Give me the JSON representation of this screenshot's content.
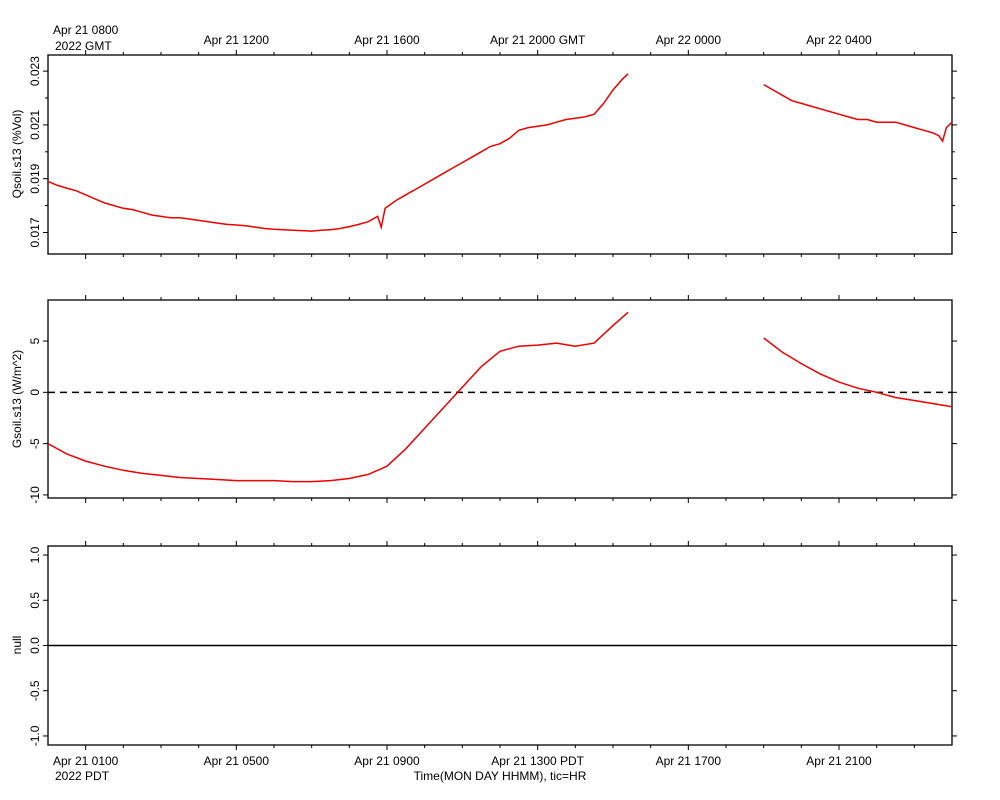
{
  "chart_data": {
    "type": "line",
    "top_axis": {
      "tick_labels": [
        "Apr 21 0800",
        "Apr 21 1200",
        "Apr 21 1600",
        "Apr 21 2000 GMT",
        "Apr 22 0000",
        "Apr 22 0400"
      ],
      "year_label": "2022 GMT"
    },
    "bottom_axis": {
      "tick_labels": [
        "Apr 21 0100",
        "Apr 21 0500",
        "Apr 21 0900",
        "Apr 21 1300 PDT",
        "Apr 21 1700",
        "Apr 21 2100"
      ],
      "year_label": "2022 PDT",
      "xlabel": "Time(MON DAY HHMM), tic=HR"
    },
    "x_hours_range": [
      -1,
      23
    ],
    "panels": [
      {
        "ylabel": "Qsoil.s13 (%Vol)",
        "ylim": [
          0.0162,
          0.0236
        ],
        "ytick_labels": [
          "0.017",
          "0.019",
          "0.021",
          "0.023"
        ],
        "ytick_values": [
          0.017,
          0.019,
          0.021,
          0.023
        ],
        "color": "#ee0000",
        "series": [
          {
            "x": [
              -1.0,
              -0.75,
              -0.5,
              -0.25,
              0.0,
              0.25,
              0.5,
              0.75,
              1.0,
              1.25,
              1.5,
              1.75,
              2.0,
              2.25,
              2.5,
              2.75,
              3.0,
              3.25,
              3.5,
              3.75,
              4.0,
              4.25,
              4.5,
              4.75,
              5.0,
              5.25,
              5.5,
              5.75,
              6.0,
              6.25,
              6.5,
              6.75,
              7.0,
              7.25,
              7.5,
              7.75,
              7.85,
              7.95,
              8.05,
              8.25,
              8.5,
              8.75,
              9.0,
              9.25,
              9.5,
              9.75,
              10.0,
              10.25,
              10.5,
              10.75,
              11.0,
              11.25,
              11.5,
              11.75,
              12.0,
              12.25,
              12.5,
              12.75,
              13.0,
              13.25,
              13.5,
              13.75,
              14.0,
              14.25,
              14.4
            ],
            "y": [
              0.0189,
              0.01875,
              0.01865,
              0.01855,
              0.0184,
              0.01825,
              0.0181,
              0.018,
              0.0179,
              0.01785,
              0.01775,
              0.01765,
              0.0176,
              0.01755,
              0.01755,
              0.0175,
              0.01745,
              0.0174,
              0.01735,
              0.0173,
              0.01728,
              0.01725,
              0.0172,
              0.01715,
              0.01712,
              0.0171,
              0.01708,
              0.01707,
              0.01705,
              0.01708,
              0.0171,
              0.01715,
              0.01722,
              0.0173,
              0.0174,
              0.0176,
              0.0172,
              0.0179,
              0.018,
              0.0182,
              0.0184,
              0.0186,
              0.0188,
              0.019,
              0.0192,
              0.0194,
              0.0196,
              0.0198,
              0.02,
              0.0202,
              0.0203,
              0.0205,
              0.0208,
              0.0209,
              0.02095,
              0.021,
              0.0211,
              0.0212,
              0.02125,
              0.0213,
              0.0214,
              0.0218,
              0.0223,
              0.0227,
              0.0229
            ]
          },
          {
            "x": [
              18.0,
              18.25,
              18.5,
              18.75,
              19.0,
              19.25,
              19.5,
              19.75,
              20.0,
              20.25,
              20.5,
              20.75,
              21.0,
              21.25,
              21.5,
              21.75,
              22.0,
              22.25,
              22.5,
              22.65,
              22.75,
              22.85,
              23.0
            ],
            "y": [
              0.0225,
              0.0223,
              0.0221,
              0.0219,
              0.0218,
              0.0217,
              0.0216,
              0.0215,
              0.0214,
              0.0213,
              0.0212,
              0.0212,
              0.0211,
              0.0211,
              0.0211,
              0.021,
              0.0209,
              0.0208,
              0.0207,
              0.0206,
              0.0204,
              0.0209,
              0.0211
            ]
          }
        ]
      },
      {
        "ylabel": "Gsoil.s13 (W/m^2)",
        "ylim": [
          -10.3,
          9.0
        ],
        "ytick_labels": [
          "-10",
          "-5",
          "0",
          "5"
        ],
        "ytick_values": [
          -10,
          -5,
          0,
          5
        ],
        "zero_line": "dashed",
        "color": "#ee0000",
        "series": [
          {
            "x": [
              -1.0,
              -0.5,
              0.0,
              0.5,
              1.0,
              1.5,
              2.0,
              2.5,
              3.0,
              3.5,
              4.0,
              4.5,
              5.0,
              5.5,
              6.0,
              6.5,
              7.0,
              7.5,
              8.0,
              8.5,
              9.0,
              9.5,
              10.0,
              10.5,
              11.0,
              11.5,
              12.0,
              12.5,
              13.0,
              13.5,
              14.0,
              14.4
            ],
            "y": [
              -5.0,
              -6.0,
              -6.7,
              -7.2,
              -7.6,
              -7.9,
              -8.1,
              -8.3,
              -8.4,
              -8.5,
              -8.6,
              -8.6,
              -8.6,
              -8.7,
              -8.7,
              -8.6,
              -8.4,
              -8.0,
              -7.2,
              -5.5,
              -3.5,
              -1.5,
              0.5,
              2.5,
              4.0,
              4.5,
              4.6,
              4.8,
              4.5,
              4.8,
              6.5,
              7.8
            ]
          },
          {
            "x": [
              18.0,
              18.5,
              19.0,
              19.5,
              20.0,
              20.5,
              21.0,
              21.5,
              22.0,
              22.5,
              23.0
            ],
            "y": [
              5.3,
              3.9,
              2.8,
              1.8,
              1.0,
              0.4,
              0.0,
              -0.5,
              -0.8,
              -1.1,
              -1.4
            ]
          }
        ]
      },
      {
        "ylabel": "null",
        "ylim": [
          -1.1,
          1.1
        ],
        "ytick_labels": [
          "-1.0",
          "-0.5",
          "0.0",
          "0.5",
          "1.0"
        ],
        "ytick_values": [
          -1.0,
          -0.5,
          0.0,
          0.5,
          1.0
        ],
        "zero_line": "solid",
        "series": []
      }
    ]
  }
}
